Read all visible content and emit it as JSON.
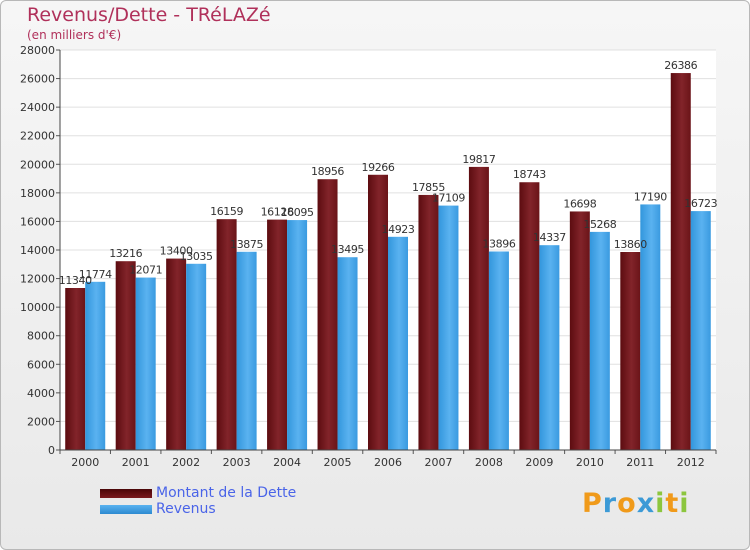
{
  "colors": {
    "dette": "#7a1a1e",
    "revenus": "#3d9ee2",
    "title": "#b0305a",
    "legend_text": "#4a64e8"
  },
  "chart_data": {
    "type": "bar",
    "title": "Revenus/Dette - TRéLAZé",
    "subtitle": "(en milliers d'€)",
    "xlabel": "",
    "ylabel": "",
    "ylim": [
      0,
      28000
    ],
    "yticks": [
      "0",
      "2000",
      "4000",
      "6000",
      "8000",
      "10000",
      "12000",
      "14000",
      "16000",
      "18000",
      "20000",
      "22000",
      "24000",
      "26000",
      "28000"
    ],
    "categories": [
      "2000",
      "2001",
      "2002",
      "2003",
      "2004",
      "2005",
      "2006",
      "2007",
      "2008",
      "2009",
      "2010",
      "2011",
      "2012"
    ],
    "series": [
      {
        "name": "Montant de la Dette",
        "values": [
          11340,
          13216,
          13400,
          16159,
          16128,
          18956,
          19266,
          17855,
          19817,
          18743,
          16698,
          13860,
          26386
        ],
        "labels": [
          "11340",
          "13216",
          "13400",
          "16159",
          "16128",
          "18956",
          "19266",
          "17855",
          "19817",
          "18743",
          "16698",
          "13860",
          "26386"
        ]
      },
      {
        "name": "Revenus",
        "values": [
          11774,
          12071,
          13035,
          13875,
          16095,
          13495,
          14923,
          17109,
          13896,
          14337,
          15268,
          17190,
          16723
        ],
        "labels": [
          "11774",
          "12071",
          "13035",
          "13875",
          "16095",
          "13495",
          "14923",
          "17109",
          "13896",
          "14337",
          "15268",
          "17190",
          "16723"
        ]
      }
    ],
    "legend": [
      "Montant de la Dette",
      "Revenus"
    ]
  },
  "logo": {
    "letters": [
      "P",
      "r",
      "o",
      "x",
      "i",
      "t",
      "i"
    ],
    "letter_colors": [
      "#f09a1a",
      "#3c9ad6",
      "#f09a1a",
      "#3c9ad6",
      "#8cc63e",
      "#f09a1a",
      "#8cc63e"
    ]
  }
}
